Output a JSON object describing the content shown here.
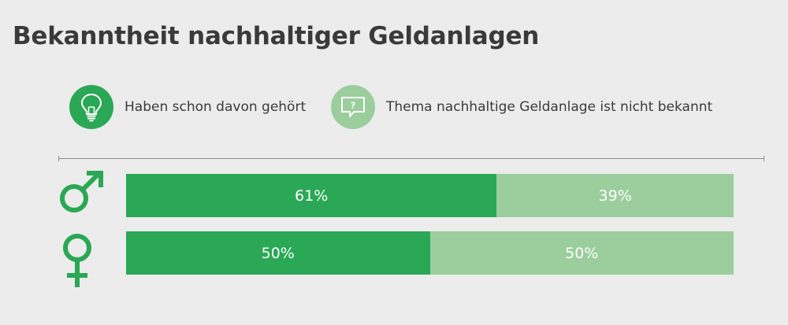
{
  "colors": {
    "known": "#2aa855",
    "unknown": "#9bce9c"
  },
  "legend": [
    {
      "icon": "lightbulb-icon",
      "label": "Haben schon davon gehört",
      "color": "#2aa855"
    },
    {
      "icon": "question-speech-bubble-icon",
      "label": "Thema nachhaltige Geldanlage ist nicht bekannt",
      "color": "#9bce9c"
    }
  ],
  "chart_data": {
    "type": "bar",
    "orientation": "horizontal",
    "stacked": true,
    "title": "Bekanntheit nachhaltiger Geldanlagen",
    "categories": [
      "male-symbol-icon",
      "female-symbol-icon"
    ],
    "series": [
      {
        "name": "Haben schon davon gehört",
        "values": [
          61,
          50
        ],
        "labels": [
          "61%",
          "50%"
        ],
        "color": "#2aa855"
      },
      {
        "name": "Thema nachhaltige Geldanlage ist nicht bekannt",
        "values": [
          39,
          50
        ],
        "labels": [
          "39%",
          "50%"
        ],
        "color": "#9bce9c"
      }
    ],
    "xlim": [
      0,
      100
    ],
    "legend": "top"
  }
}
